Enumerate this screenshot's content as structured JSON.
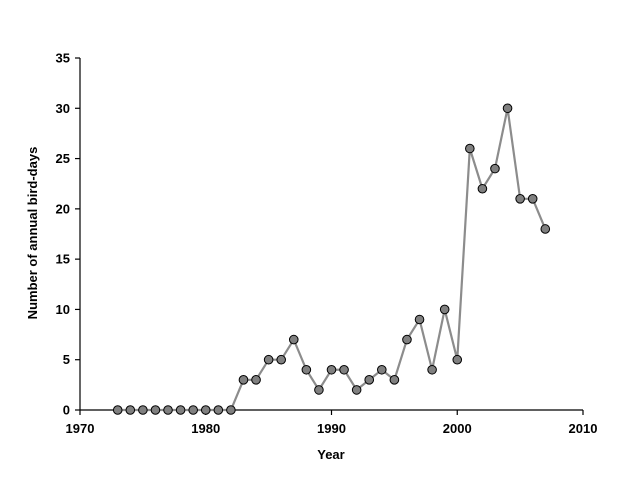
{
  "chart_data": {
    "type": "line",
    "title": "",
    "xlabel": "Year",
    "ylabel": "Number of annual bird-days",
    "xlim": [
      1970,
      2010
    ],
    "ylim": [
      0,
      35
    ],
    "xticks": [
      "1970",
      "1980",
      "1990",
      "2000",
      "2010"
    ],
    "yticks": [
      "0",
      "5",
      "10",
      "15",
      "20",
      "25",
      "30",
      "35"
    ],
    "grid": false,
    "legend": "none",
    "colors": {
      "line": "#8c8c8c",
      "marker_fill": "#808080",
      "marker_edge": "#000000"
    },
    "series": [
      {
        "x": [
          1973,
          1974,
          1975,
          1976,
          1977,
          1978,
          1979,
          1980,
          1981,
          1982,
          1983,
          1984,
          1985,
          1986,
          1987,
          1988,
          1989,
          1990,
          1991,
          1992,
          1993,
          1994,
          1995,
          1996,
          1997,
          1998,
          1999,
          2000,
          2001,
          2002,
          2003,
          2004,
          2005,
          2006,
          2007
        ],
        "values": [
          0,
          0,
          0,
          0,
          0,
          0,
          0,
          0,
          0,
          0,
          3,
          3,
          5,
          5,
          7,
          4,
          2,
          4,
          4,
          2,
          3,
          4,
          3,
          7,
          9,
          4,
          10,
          5,
          26,
          22,
          24,
          30,
          21,
          21,
          18
        ]
      }
    ]
  }
}
